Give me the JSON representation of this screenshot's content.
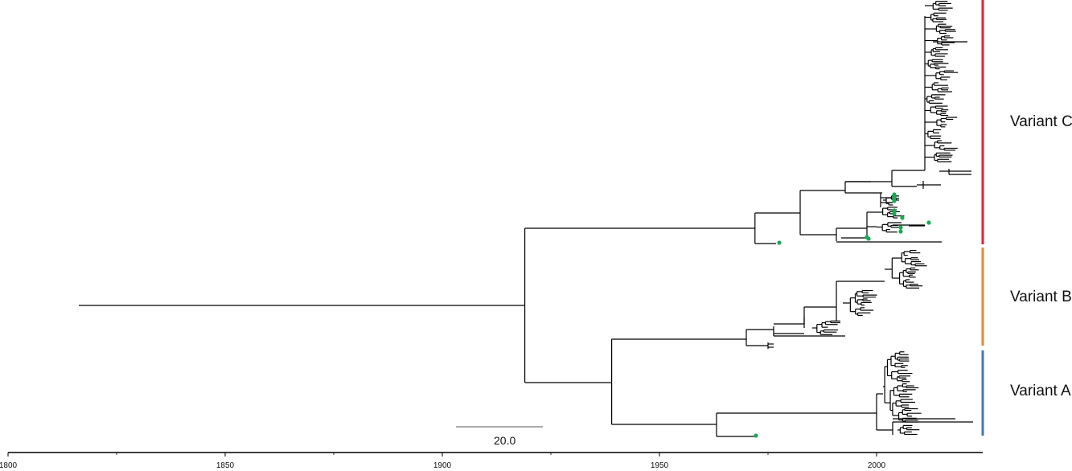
{
  "figure": {
    "type": "time-scaled phylogenetic tree",
    "branch_color": "#000000",
    "sample_marker_color": "#1aaa55"
  },
  "scale_bar": {
    "label": "20.0"
  },
  "time_axis": {
    "ticks": [
      "1800",
      "1850",
      "1900",
      "1950",
      "2000"
    ],
    "range": [
      1800,
      2023
    ]
  },
  "clades": [
    {
      "label": "Variant C",
      "color": "#e8202a"
    },
    {
      "label": "Variant B",
      "color": "#e08a36"
    },
    {
      "label": "Variant A",
      "color": "#4475b8"
    }
  ],
  "key_nodes": {
    "root_year": 1815,
    "c_and_ab_split_year": 1919,
    "ab_split_year": 1939,
    "c_crown_year": 1972,
    "b_crown_year": 1970,
    "a_crown_year": 2000
  }
}
